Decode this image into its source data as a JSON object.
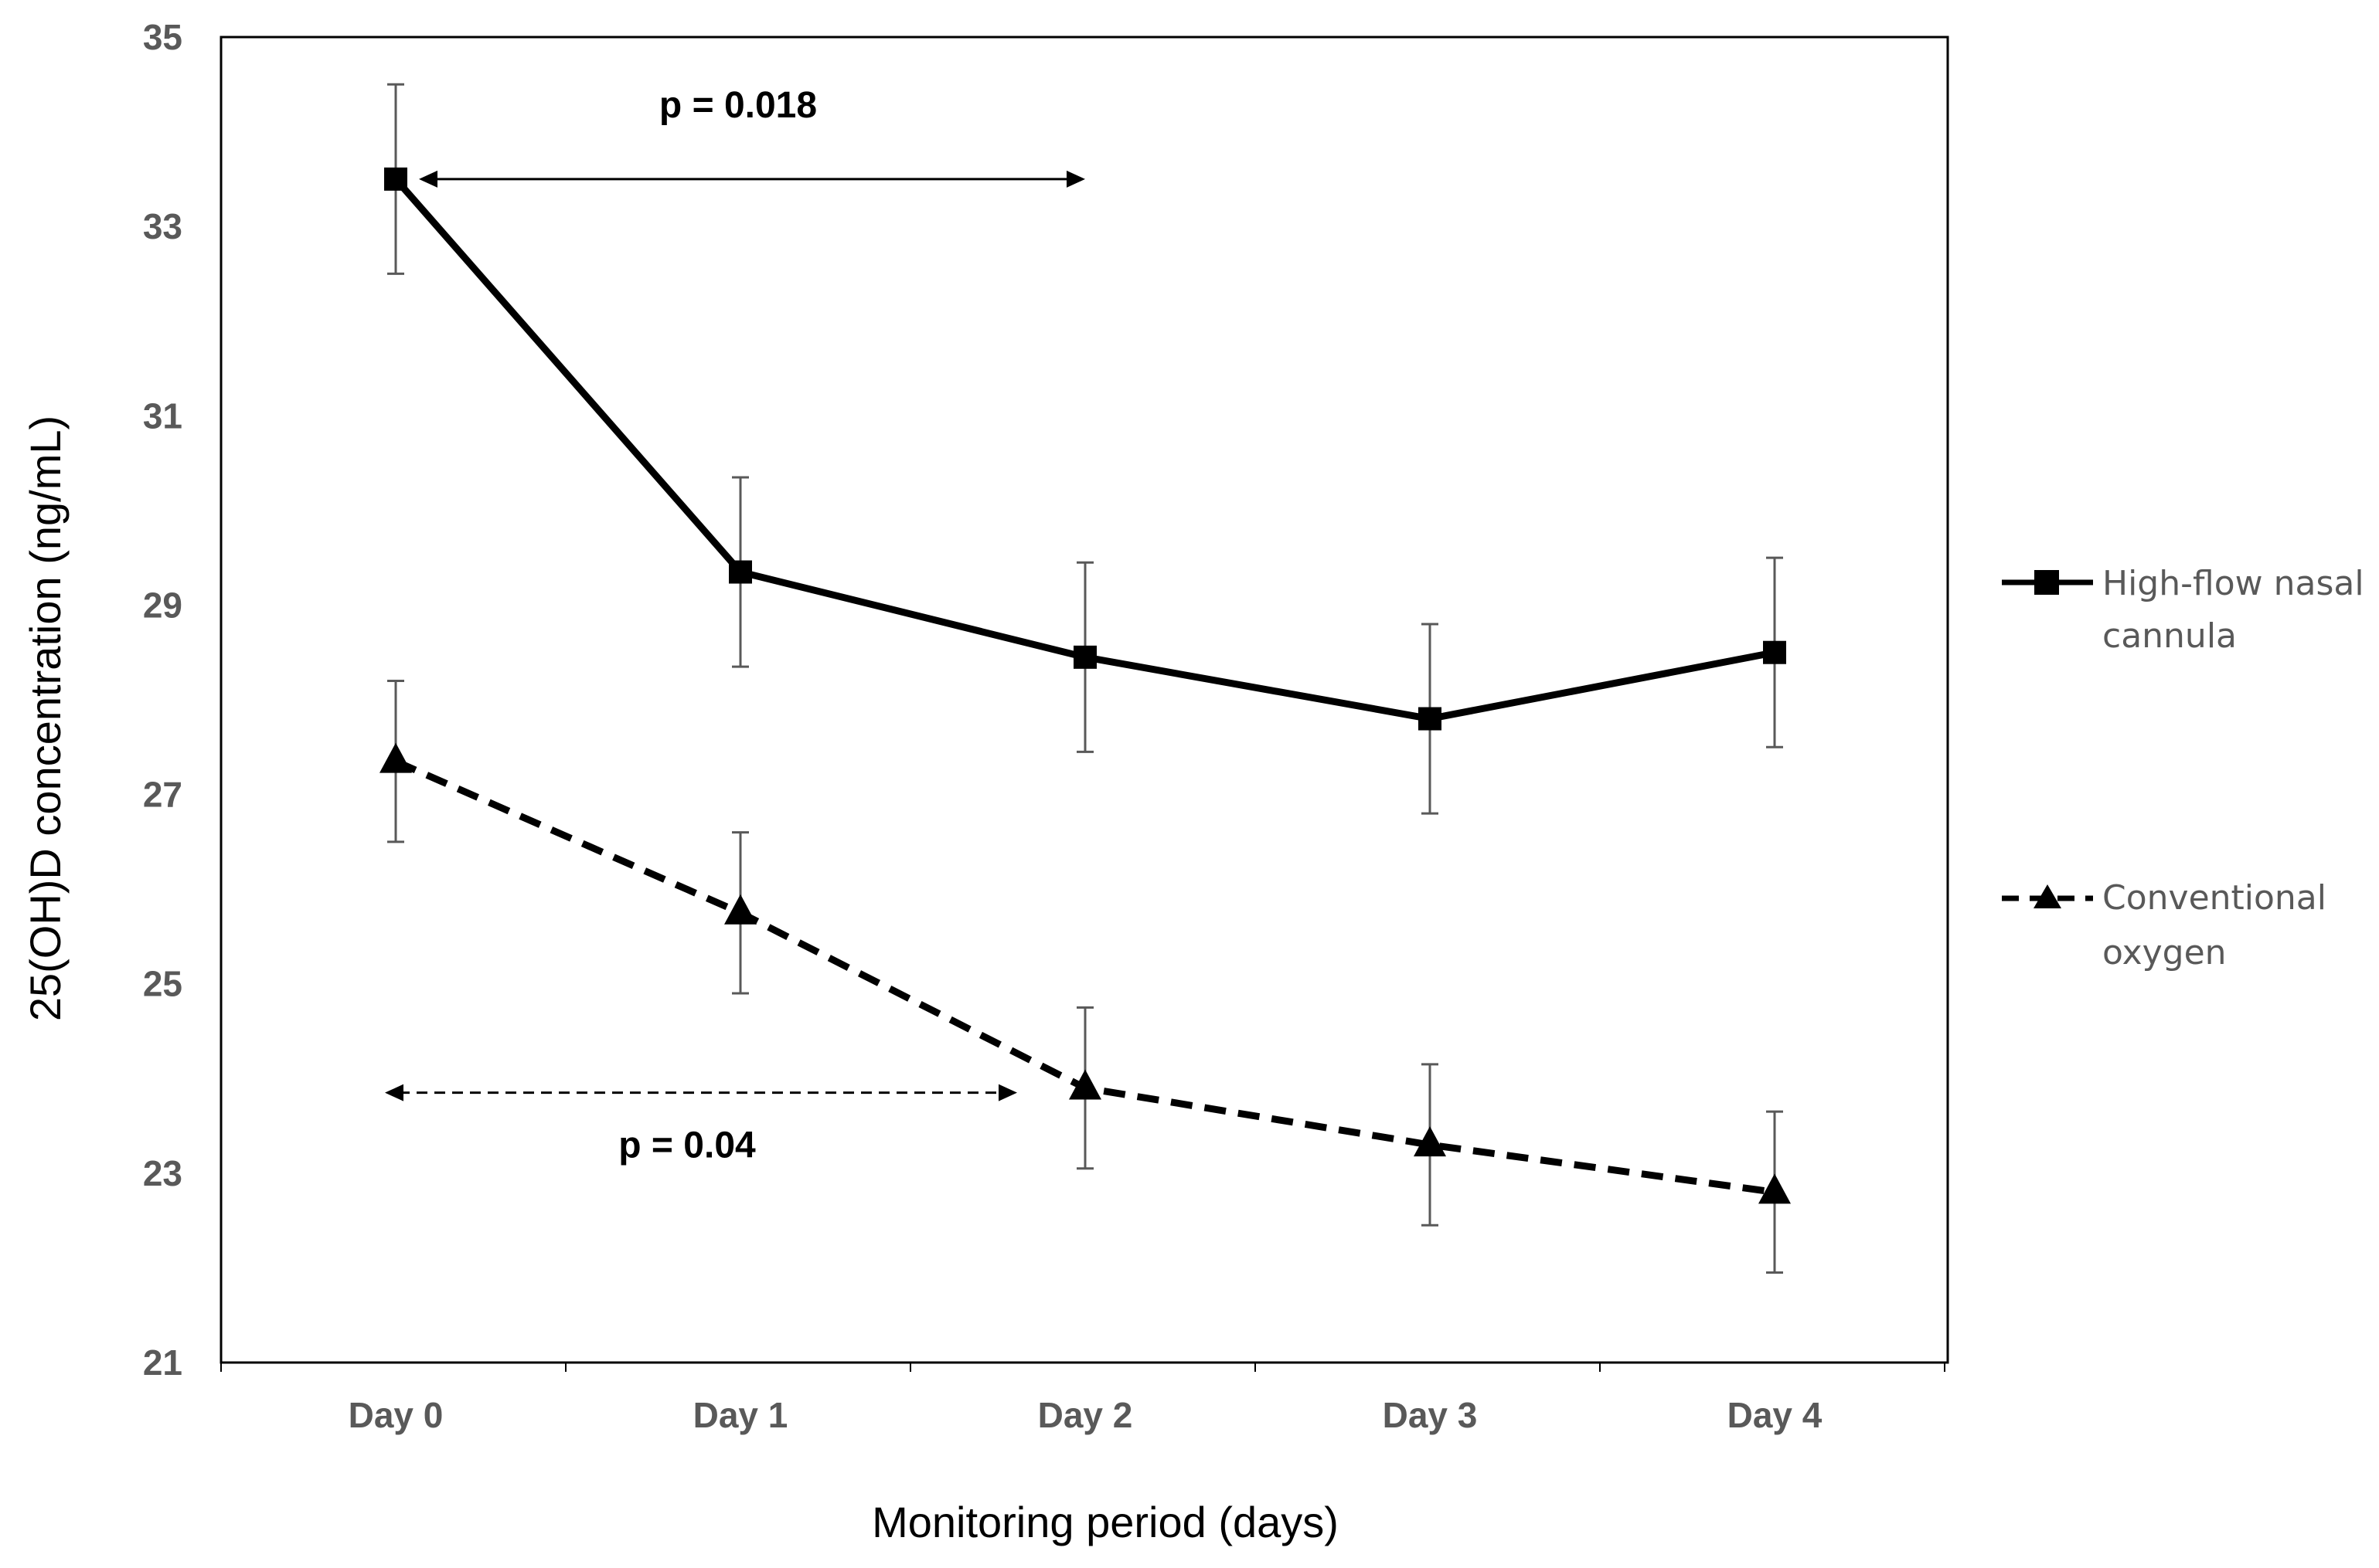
{
  "chart_data": {
    "type": "line",
    "title": "",
    "xlabel": "Monitoring period (days)",
    "ylabel": "25(OH)D concentration (ng/mL)",
    "categories": [
      "Day 0",
      "Day 1",
      "Day 2",
      "Day 3",
      "Day 4"
    ],
    "ylim": [
      21,
      35
    ],
    "yticks": [
      21,
      23,
      25,
      27,
      29,
      31,
      33,
      35
    ],
    "yticks_labels": [
      "21",
      "23",
      "25",
      "27",
      "29",
      "31",
      "33",
      "35"
    ],
    "grid": false,
    "legend_position": "right",
    "series": [
      {
        "name": "High-flow nasal cannula",
        "legend_lines": [
          "High-flow nasal",
          "cannula"
        ],
        "marker": "square",
        "line_style": "solid",
        "values": [
          33.5,
          29.35,
          28.45,
          27.8,
          28.5
        ],
        "error": [
          1.0,
          1.0,
          1.0,
          1.0,
          1.0
        ]
      },
      {
        "name": "Conventional oxygen",
        "legend_lines": [
          "Conventional",
          "oxygen"
        ],
        "marker": "triangle",
        "line_style": "dashed",
        "values": [
          27.35,
          25.75,
          23.9,
          23.3,
          22.8
        ],
        "error": [
          0.85,
          0.85,
          0.85,
          0.85,
          0.85
        ]
      }
    ],
    "annotations": [
      {
        "text": "p = 0.018",
        "from": "Day 0",
        "to": "Day 2",
        "y": 33.5,
        "style": "solid"
      },
      {
        "text": "p = 0.04",
        "from": "Day 0",
        "to": "Day 2",
        "y": 23.85,
        "style": "dashed"
      }
    ],
    "colors": {
      "line": "#000000",
      "error_bar": "#595959",
      "tick_text": "#595959"
    }
  }
}
